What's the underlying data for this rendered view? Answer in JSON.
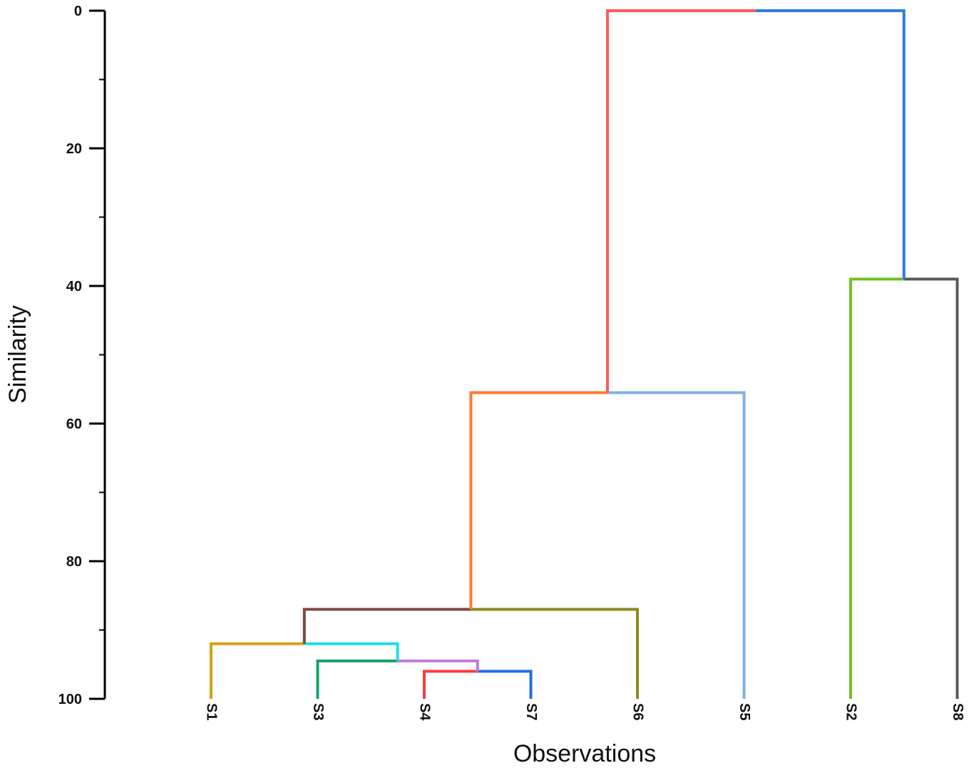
{
  "chart_data": {
    "type": "dendrogram",
    "xlabel": "Observations",
    "ylabel": "Similarity",
    "ylim": [
      0,
      100
    ],
    "y_ticks": [
      "0",
      "20",
      "40",
      "60",
      "80",
      "100"
    ],
    "y_tick_values": [
      0,
      20,
      40,
      60,
      80,
      100
    ],
    "y_minor_ticks": [
      10,
      30,
      50,
      70,
      90
    ],
    "leaves": [
      "S1",
      "S3",
      "S4",
      "S7",
      "S6",
      "S5",
      "S2",
      "S8"
    ],
    "merges": [
      {
        "left": "S4",
        "right": "S7",
        "similarity": 96,
        "left_color": "#ff3b3b",
        "right_color": "#1f6fe0"
      },
      {
        "left": "S3",
        "right": "S4+S7",
        "similarity": 94.5,
        "left_color": "#14a36b",
        "right_color": "#c27ad8"
      },
      {
        "left": "S1",
        "right": "S3+S4+S7",
        "similarity": 92,
        "left_color": "#d4a017",
        "right_color": "#1fdde6"
      },
      {
        "left": "S1+S3+S4+S7",
        "right": "S6",
        "similarity": 87,
        "left_color": "#7a4a45",
        "right_color": "#8a8a1c"
      },
      {
        "left": "S1+S3+S4+S7+S6",
        "right": "S5",
        "similarity": 55.5,
        "left_color": "#ff7a2e",
        "right_color": "#7fb2e6"
      },
      {
        "left": "S2",
        "right": "S8",
        "similarity": 39,
        "left_color": "#6ec320",
        "right_color": "#5a5a5a"
      },
      {
        "left": "S1+S3+S4+S7+S6+S5",
        "right": "S2+S8",
        "similarity": 0,
        "left_color": "#ff5a5a",
        "right_color": "#2a7ee0"
      }
    ],
    "axis_color": "#000000"
  }
}
